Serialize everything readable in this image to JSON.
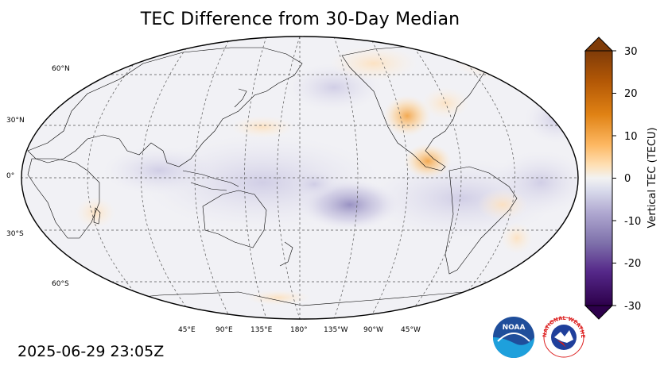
{
  "title": "TEC Difference from 30-Day Median",
  "timestamp": "2025-06-29 23:05Z",
  "lat_labels": [
    "60°N",
    "30°N",
    "0°",
    "30°S",
    "60°S"
  ],
  "lon_labels": [
    "45°E",
    "90°E",
    "135°E",
    "180°",
    "135°W",
    "90°W",
    "45°W"
  ],
  "colorbar": {
    "label": "Vertical TEC (TECU)",
    "ticks": [
      "30",
      "20",
      "10",
      "0",
      "-10",
      "-20",
      "-30"
    ],
    "range": [
      -30,
      30
    ],
    "colors": {
      "low": "#2d0a4e",
      "mid": "#f2f2f2",
      "high": "#7f3b08"
    }
  },
  "logos": {
    "noaa": {
      "text": "NOAA",
      "icon": "noaa-logo"
    },
    "nws": {
      "text": "NATIONAL WEATHER SERVICE",
      "icon": "nws-logo"
    }
  }
}
